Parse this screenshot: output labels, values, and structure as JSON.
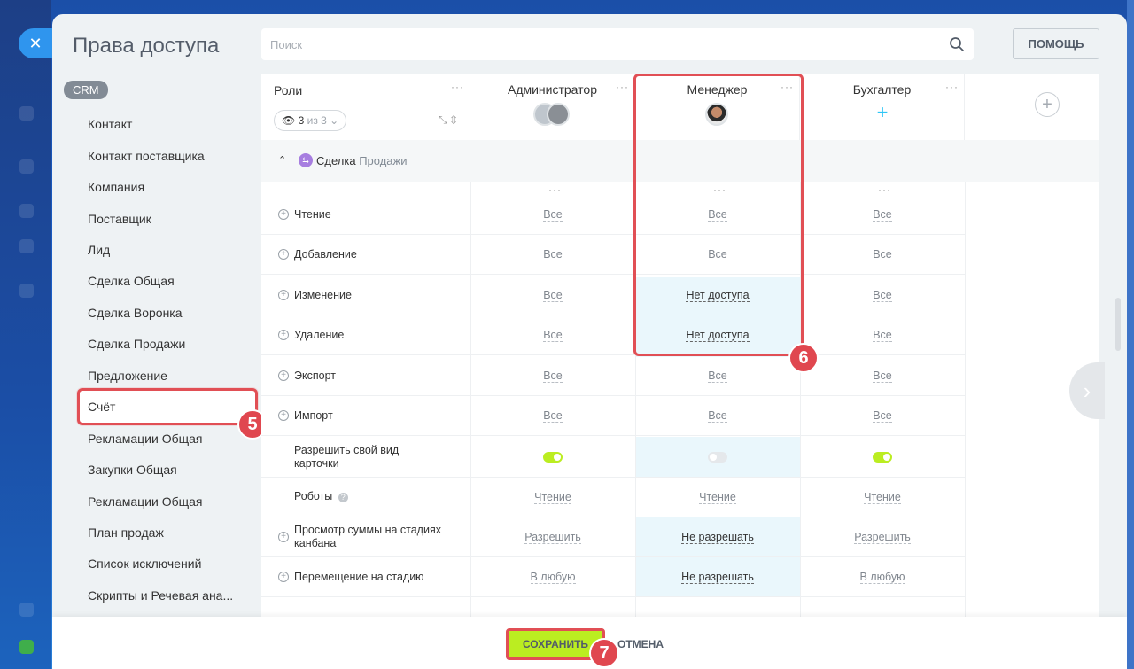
{
  "title": "Права доступа",
  "search": {
    "placeholder": "Поиск"
  },
  "help_label": "ПОМОЩЬ",
  "sidebar": {
    "badge": "CRM",
    "items": [
      "Контакт",
      "Контакт поставщика",
      "Компания",
      "Поставщик",
      "Лид",
      "Сделка Общая",
      "Сделка Воронка",
      "Сделка Продажи",
      "Предложение",
      "Счёт",
      "Рекламации Общая",
      "Закупки Общая",
      "Рекламации Общая",
      "План продаж",
      "Список исключений",
      "Скрипты и Речевая ана..."
    ],
    "selected_index": 7
  },
  "table": {
    "roles_label": "Роли",
    "counter": {
      "count": "3",
      "of": "из 3"
    },
    "roles": [
      "Администратор",
      "Менеджер",
      "Бухгалтер"
    ],
    "section": {
      "name": "Сделка",
      "sub": "Продажи"
    },
    "rows": [
      {
        "label": "Чтение",
        "values": [
          "Все",
          "Все",
          "Все"
        ]
      },
      {
        "label": "Добавление",
        "values": [
          "Все",
          "Все",
          "Все"
        ]
      },
      {
        "label": "Изменение",
        "values": [
          "Все",
          "Нет доступа",
          "Все"
        ]
      },
      {
        "label": "Удаление",
        "values": [
          "Все",
          "Нет доступа",
          "Все"
        ]
      },
      {
        "label": "Экспорт",
        "values": [
          "Все",
          "Все",
          "Все"
        ]
      },
      {
        "label": "Импорт",
        "values": [
          "Все",
          "Все",
          "Все"
        ]
      },
      {
        "label": "Разрешить свой вид карточки",
        "toggles": [
          true,
          false,
          true
        ]
      },
      {
        "label": "Роботы",
        "values": [
          "Чтение",
          "Чтение",
          "Чтение"
        ]
      },
      {
        "label": "Просмотр суммы на стадиях канбана",
        "values": [
          "Разрешить",
          "Не разрешать",
          "Разрешить"
        ]
      },
      {
        "label": "Перемещение на стадию",
        "values": [
          "В любую",
          "Не разрешать",
          "В любую"
        ]
      }
    ]
  },
  "badges": {
    "sidebar": "5",
    "manager": "6",
    "save": "7"
  },
  "footer": {
    "save": "СОХРАНИТЬ",
    "cancel": "ОТМЕНА"
  },
  "colors": {
    "accent_green": "#bbed21",
    "highlight_red": "#e14f55",
    "highlight_cell": "#eaf7fc"
  }
}
